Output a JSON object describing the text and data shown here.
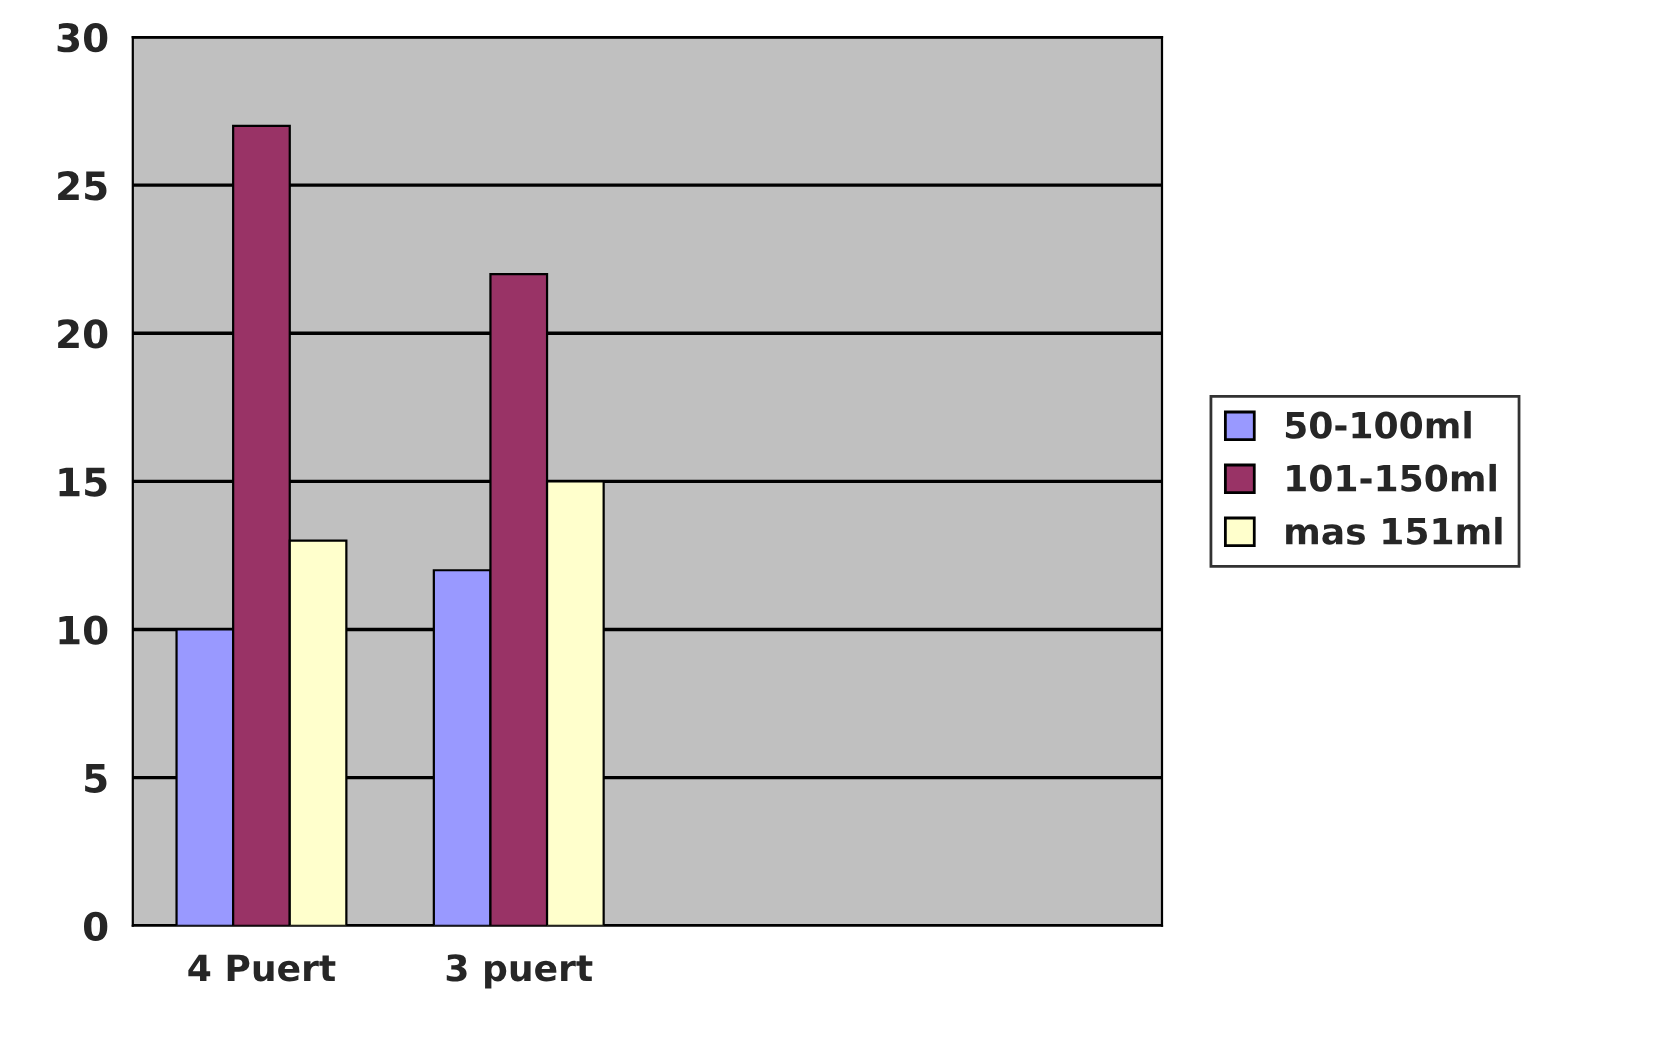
{
  "chart_data": {
    "type": "bar",
    "categories": [
      "4 Puert",
      "3 puert",
      null,
      null
    ],
    "series": [
      {
        "name": "50-100ml",
        "color": "#9999ff",
        "values": [
          10,
          12,
          null,
          null
        ]
      },
      {
        "name": "101-150ml",
        "color": "#993366",
        "values": [
          27,
          22,
          null,
          null
        ]
      },
      {
        "name": "mas 151ml",
        "color": "#ffffcc",
        "values": [
          13,
          15,
          null,
          null
        ]
      }
    ],
    "ylim": [
      0,
      30
    ],
    "yticks": [
      0,
      5,
      10,
      15,
      20,
      25,
      30
    ],
    "grid": "y",
    "legend": "right"
  }
}
